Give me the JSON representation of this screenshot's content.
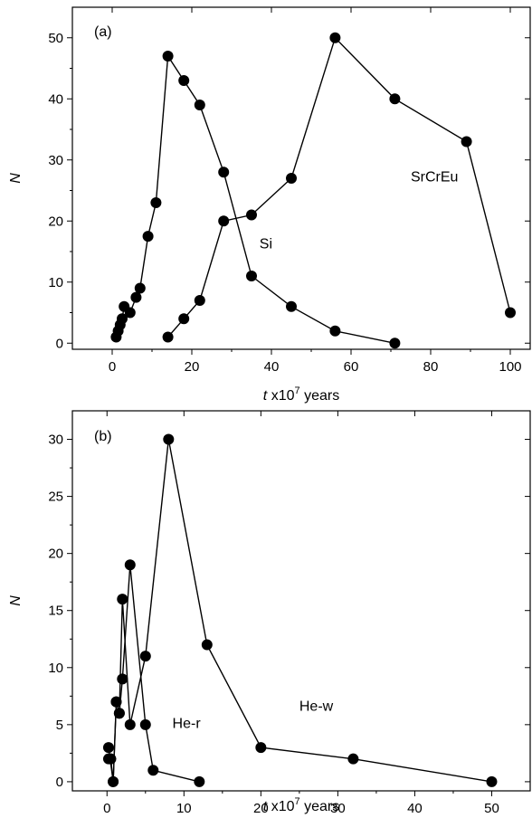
{
  "chart_data": [
    {
      "type": "line",
      "panel_label": "(a)",
      "xlabel": "t x10^7 years",
      "xlabel_var": "t",
      "xlabel_rest": " x10",
      "xlabel_sup": "7",
      "xlabel_unit": " years",
      "ylabel": "N",
      "xlim": [
        -10,
        105
      ],
      "ylim": [
        -1,
        55
      ],
      "xticks": [
        0,
        20,
        40,
        60,
        80,
        100
      ],
      "yticks": [
        0,
        10,
        20,
        30,
        40,
        50
      ],
      "grid": false,
      "series": [
        {
          "name": "Si",
          "x": [
            1,
            1.5,
            2,
            2.5,
            3,
            4.5,
            6,
            7,
            9,
            11,
            14,
            18,
            22,
            28,
            35,
            45,
            56,
            71
          ],
          "y": [
            1,
            2,
            3,
            4,
            6,
            5,
            7.5,
            9,
            17.5,
            23,
            47,
            43,
            39,
            28,
            11,
            6,
            2,
            0
          ]
        },
        {
          "name": "SrCrEu",
          "x": [
            14,
            18,
            22,
            28,
            35,
            45,
            56,
            71,
            89,
            100
          ],
          "y": [
            1,
            4,
            7,
            20,
            21,
            27,
            50,
            40,
            33,
            5
          ]
        }
      ],
      "annotations": [
        {
          "text": "Si",
          "x": 37,
          "y": 15.5
        },
        {
          "text": "SrCrEu",
          "x": 75,
          "y": 26.5
        }
      ]
    },
    {
      "type": "line",
      "panel_label": "(b)",
      "xlabel": "t x10^7 years",
      "xlabel_var": "t",
      "xlabel_rest": " x10",
      "xlabel_sup": "7",
      "xlabel_unit": " years",
      "ylabel": "N",
      "xlim": [
        -4.5,
        55
      ],
      "ylim": [
        -0.8,
        32.5
      ],
      "xticks": [
        0,
        10,
        20,
        30,
        40,
        50
      ],
      "yticks": [
        0,
        5,
        10,
        15,
        20,
        25,
        30
      ],
      "grid": false,
      "series": [
        {
          "name": "He-r",
          "x": [
            0.2,
            0.4,
            0.8,
            1.2,
            1.6,
            2,
            3,
            5,
            6,
            12
          ],
          "y": [
            3,
            2,
            0,
            7,
            6,
            9,
            19,
            5,
            1,
            0
          ]
        },
        {
          "name": "He-w",
          "x": [
            0.2,
            0.5,
            0.8,
            1.2,
            1.6,
            2,
            3,
            5,
            8,
            13,
            20,
            32,
            50
          ],
          "y": [
            2,
            2,
            0,
            7,
            6,
            16,
            5,
            11,
            30,
            12,
            3,
            2,
            0
          ]
        }
      ],
      "annotations": [
        {
          "text": "He-r",
          "x": 8.5,
          "y": 4.7
        },
        {
          "text": "He-w",
          "x": 25,
          "y": 6.2
        }
      ]
    }
  ]
}
